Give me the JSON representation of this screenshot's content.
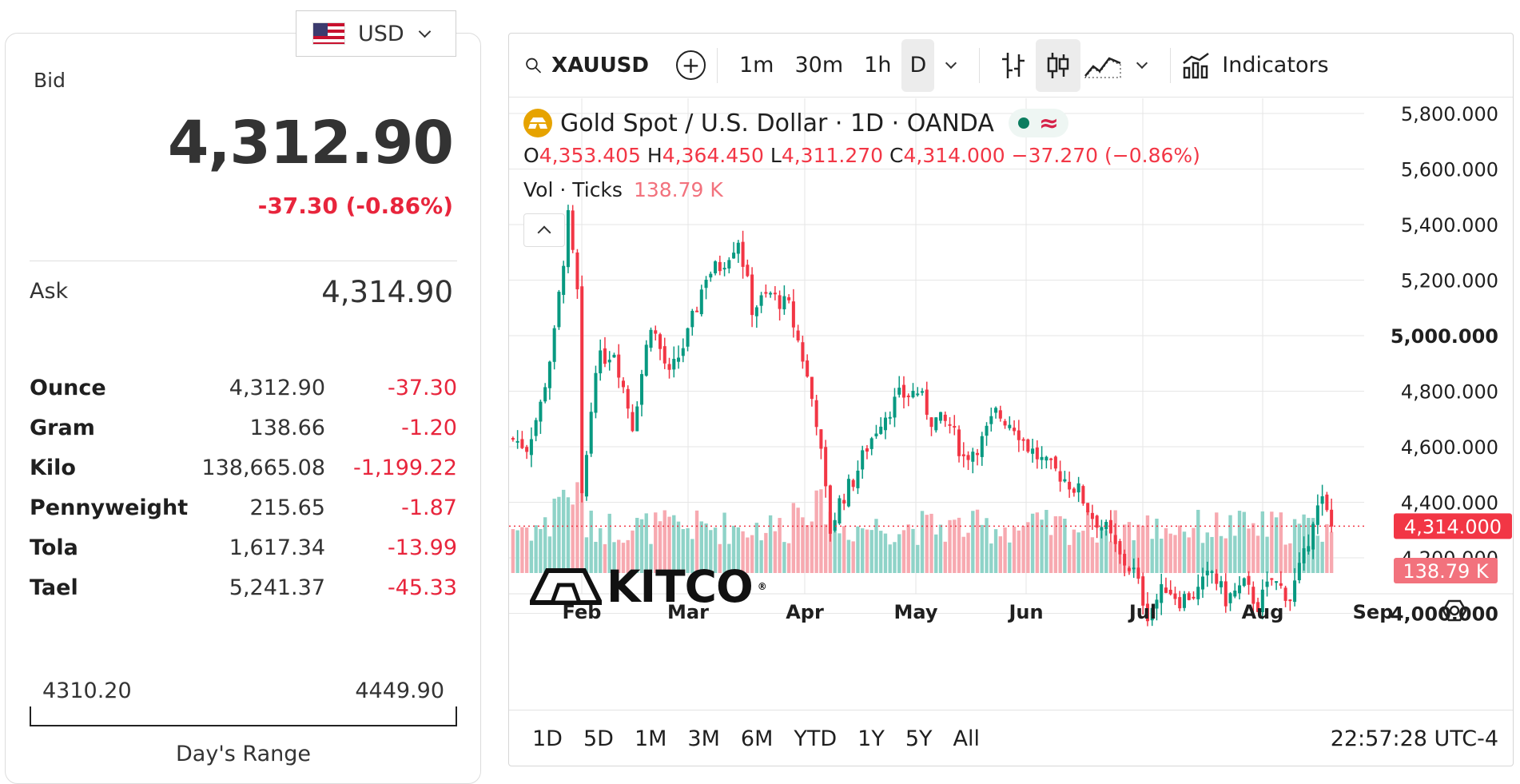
{
  "currency": {
    "code": "USD",
    "flag_icon": "us-flag-icon"
  },
  "quote": {
    "bid_label": "Bid",
    "bid_price": "4,312.90",
    "bid_change": "-37.30 (-0.86%)",
    "ask_label": "Ask",
    "ask_price": "4,314.90"
  },
  "units": [
    {
      "unit": "Ounce",
      "price": "4,312.90",
      "change": "-37.30"
    },
    {
      "unit": "Gram",
      "price": "138.66",
      "change": "-1.20"
    },
    {
      "unit": "Kilo",
      "price": "138,665.08",
      "change": "-1,199.22"
    },
    {
      "unit": "Pennyweight",
      "price": "215.65",
      "change": "-1.87"
    },
    {
      "unit": "Tola",
      "price": "1,617.34",
      "change": "-13.99"
    },
    {
      "unit": "Tael",
      "price": "5,241.37",
      "change": "-45.33"
    }
  ],
  "day_range": {
    "low": "4310.20",
    "high": "4449.90",
    "label": "Day's Range"
  },
  "toolbar": {
    "symbol": "XAUUSD",
    "intervals": [
      "1m",
      "30m",
      "1h",
      "D"
    ],
    "active_interval": "D",
    "indicators_label": "Indicators"
  },
  "legend": {
    "title": "Gold Spot / U.S. Dollar · 1D · OANDA",
    "o_label": "O",
    "o": "4,353.405",
    "h_label": "H",
    "h": "4,364.450",
    "l_label": "L",
    "l": "4,311.270",
    "c_label": "C",
    "c": "4,314.000",
    "change": "−37.270 (−0.86%)",
    "volume_label": "Vol · Ticks",
    "volume_value": "138.79 K"
  },
  "watermark": {
    "text": "KITCO",
    "mark": "®"
  },
  "ranges": [
    "1D",
    "5D",
    "1M",
    "3M",
    "6M",
    "YTD",
    "1Y",
    "5Y",
    "All"
  ],
  "clock": "22:57:28 UTC-4",
  "colors": {
    "up": "#089981",
    "down": "#f23645",
    "up_volume": "#8fd3c8",
    "down_volume": "#f7a9b0",
    "accent": "#e8253c"
  },
  "chart_data": {
    "type": "candlestick",
    "y_tick_labels": [
      "5,800.000",
      "5,600.000",
      "5,400.000",
      "5,200.000",
      "5,000.000",
      "4,800.000",
      "4,600.000",
      "4,400.000",
      "4,200.000",
      "4,000.000"
    ],
    "ylim": [
      3840,
      5800
    ],
    "x_tick_labels": [
      "Feb",
      "Mar",
      "Apr",
      "May",
      "Jun",
      "Jul",
      "Aug",
      "Sep"
    ],
    "last_price": "4,314.000",
    "last_price_value": 4314,
    "last_volume": "138.79 K",
    "grid": true,
    "price_points": [
      [
        0,
        4630
      ],
      [
        3,
        4600
      ],
      [
        6,
        4750
      ],
      [
        9,
        5000
      ],
      [
        12,
        5420
      ],
      [
        14,
        5150
      ],
      [
        15,
        4400
      ],
      [
        18,
        4900
      ],
      [
        22,
        4950
      ],
      [
        26,
        4680
      ],
      [
        30,
        5050
      ],
      [
        34,
        4850
      ],
      [
        38,
        5000
      ],
      [
        42,
        5220
      ],
      [
        45,
        5250
      ],
      [
        49,
        5350
      ],
      [
        52,
        5100
      ],
      [
        56,
        5150
      ],
      [
        60,
        5100
      ],
      [
        63,
        4920
      ],
      [
        66,
        4700
      ],
      [
        69,
        4300
      ],
      [
        71,
        4400
      ],
      [
        74,
        4480
      ],
      [
        77,
        4600
      ],
      [
        80,
        4700
      ],
      [
        84,
        4780
      ],
      [
        88,
        4800
      ],
      [
        91,
        4700
      ],
      [
        95,
        4680
      ],
      [
        98,
        4560
      ],
      [
        102,
        4620
      ],
      [
        105,
        4720
      ],
      [
        109,
        4680
      ],
      [
        112,
        4600
      ],
      [
        116,
        4530
      ],
      [
        119,
        4500
      ],
      [
        123,
        4440
      ],
      [
        126,
        4350
      ],
      [
        129,
        4300
      ],
      [
        132,
        4200
      ],
      [
        135,
        4150
      ],
      [
        138,
        4000
      ],
      [
        142,
        4100
      ],
      [
        145,
        4050
      ],
      [
        149,
        4080
      ],
      [
        152,
        4150
      ],
      [
        155,
        4050
      ],
      [
        159,
        4100
      ],
      [
        162,
        4030
      ],
      [
        165,
        4120
      ],
      [
        169,
        4060
      ],
      [
        172,
        4200
      ],
      [
        174,
        4350
      ],
      [
        176,
        4400
      ],
      [
        178,
        4310
      ]
    ],
    "volume_range": [
      0,
      500
    ]
  }
}
